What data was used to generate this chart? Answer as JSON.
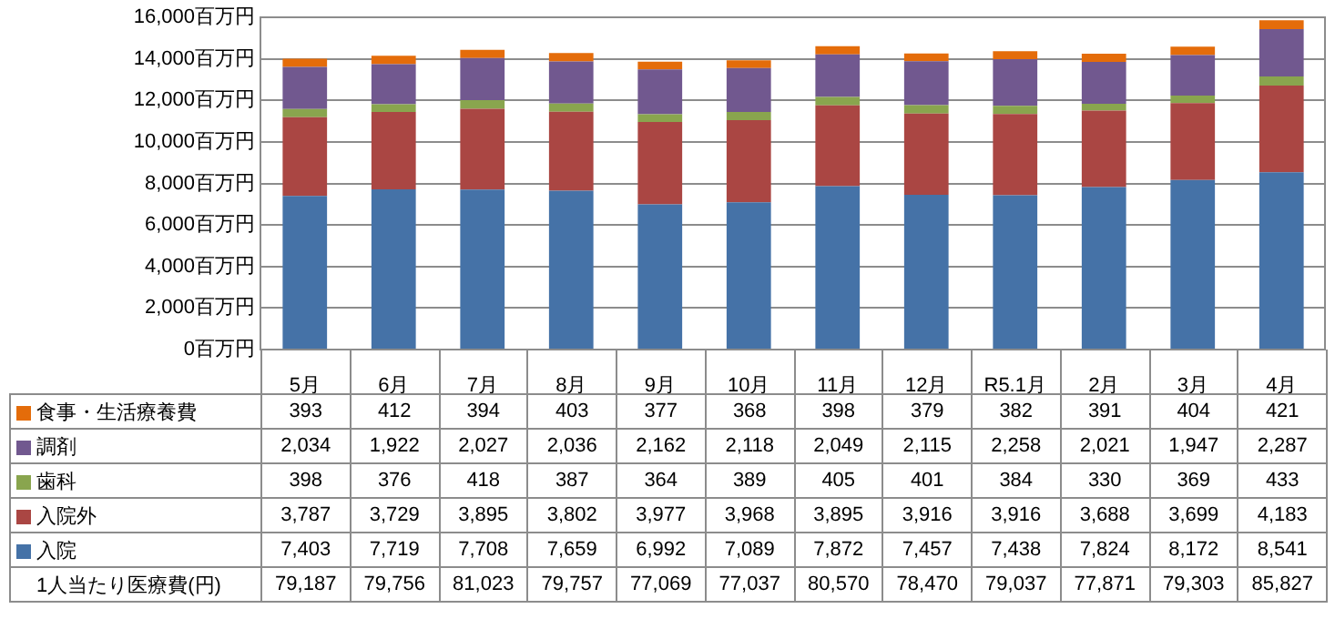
{
  "chart_data": {
    "type": "bar",
    "stacked": true,
    "legend": "bottom",
    "grid": "y",
    "categories": [
      "5月",
      "6月",
      "7月",
      "8月",
      "9月",
      "10月",
      "11月",
      "12月",
      "R5.1月",
      "2月",
      "3月",
      "4月"
    ],
    "ylim": [
      0,
      16000
    ],
    "yticks": [
      {
        "value": 0,
        "label": "0百万円"
      },
      {
        "value": 2000,
        "label": "2,000百万円"
      },
      {
        "value": 4000,
        "label": "4,000百万円"
      },
      {
        "value": 6000,
        "label": "6,000百万円"
      },
      {
        "value": 8000,
        "label": "8,000百万円"
      },
      {
        "value": 10000,
        "label": "10,000百万円"
      },
      {
        "value": 12000,
        "label": "12,000百万円"
      },
      {
        "value": 14000,
        "label": "14,000百万円"
      },
      {
        "value": 16000,
        "label": "16,000百万円"
      }
    ],
    "series": [
      {
        "name": "入院",
        "color": "#4572a7",
        "values": [
          7403,
          7719,
          7708,
          7659,
          6992,
          7089,
          7872,
          7457,
          7438,
          7824,
          8172,
          8541
        ],
        "value_labels": [
          "7,403",
          "7,719",
          "7,708",
          "7,659",
          "6,992",
          "7,089",
          "7,872",
          "7,457",
          "7,438",
          "7,824",
          "8,172",
          "8,541"
        ]
      },
      {
        "name": "入院外",
        "color": "#aa4643",
        "values": [
          3787,
          3729,
          3895,
          3802,
          3977,
          3968,
          3895,
          3916,
          3916,
          3688,
          3699,
          4183
        ],
        "value_labels": [
          "3,787",
          "3,729",
          "3,895",
          "3,802",
          "3,977",
          "3,968",
          "3,895",
          "3,916",
          "3,916",
          "3,688",
          "3,699",
          "4,183"
        ]
      },
      {
        "name": "歯科",
        "color": "#89a54e",
        "values": [
          398,
          376,
          418,
          387,
          364,
          389,
          405,
          401,
          384,
          330,
          369,
          433
        ],
        "value_labels": [
          "398",
          "376",
          "418",
          "387",
          "364",
          "389",
          "405",
          "401",
          "384",
          "330",
          "369",
          "433"
        ]
      },
      {
        "name": "調剤",
        "color": "#71588f",
        "values": [
          2034,
          1922,
          2027,
          2036,
          2162,
          2118,
          2049,
          2115,
          2258,
          2021,
          1947,
          2287
        ],
        "value_labels": [
          "2,034",
          "1,922",
          "2,027",
          "2,036",
          "2,162",
          "2,118",
          "2,049",
          "2,115",
          "2,258",
          "2,021",
          "1,947",
          "2,287"
        ]
      },
      {
        "name": "食事・生活療養費",
        "color": "#e46c0a",
        "values": [
          393,
          412,
          394,
          403,
          377,
          368,
          398,
          379,
          382,
          391,
          404,
          421
        ],
        "value_labels": [
          "393",
          "412",
          "394",
          "403",
          "377",
          "368",
          "398",
          "379",
          "382",
          "391",
          "404",
          "421"
        ]
      }
    ],
    "annotations": [
      "1人当たり医療費(円)",
      "79,187",
      "79,756",
      "81,023",
      "79,757",
      "77,069",
      "77,037",
      "80,570",
      "78,470",
      "79,037",
      "77,871",
      "79,303",
      "85,827"
    ]
  }
}
